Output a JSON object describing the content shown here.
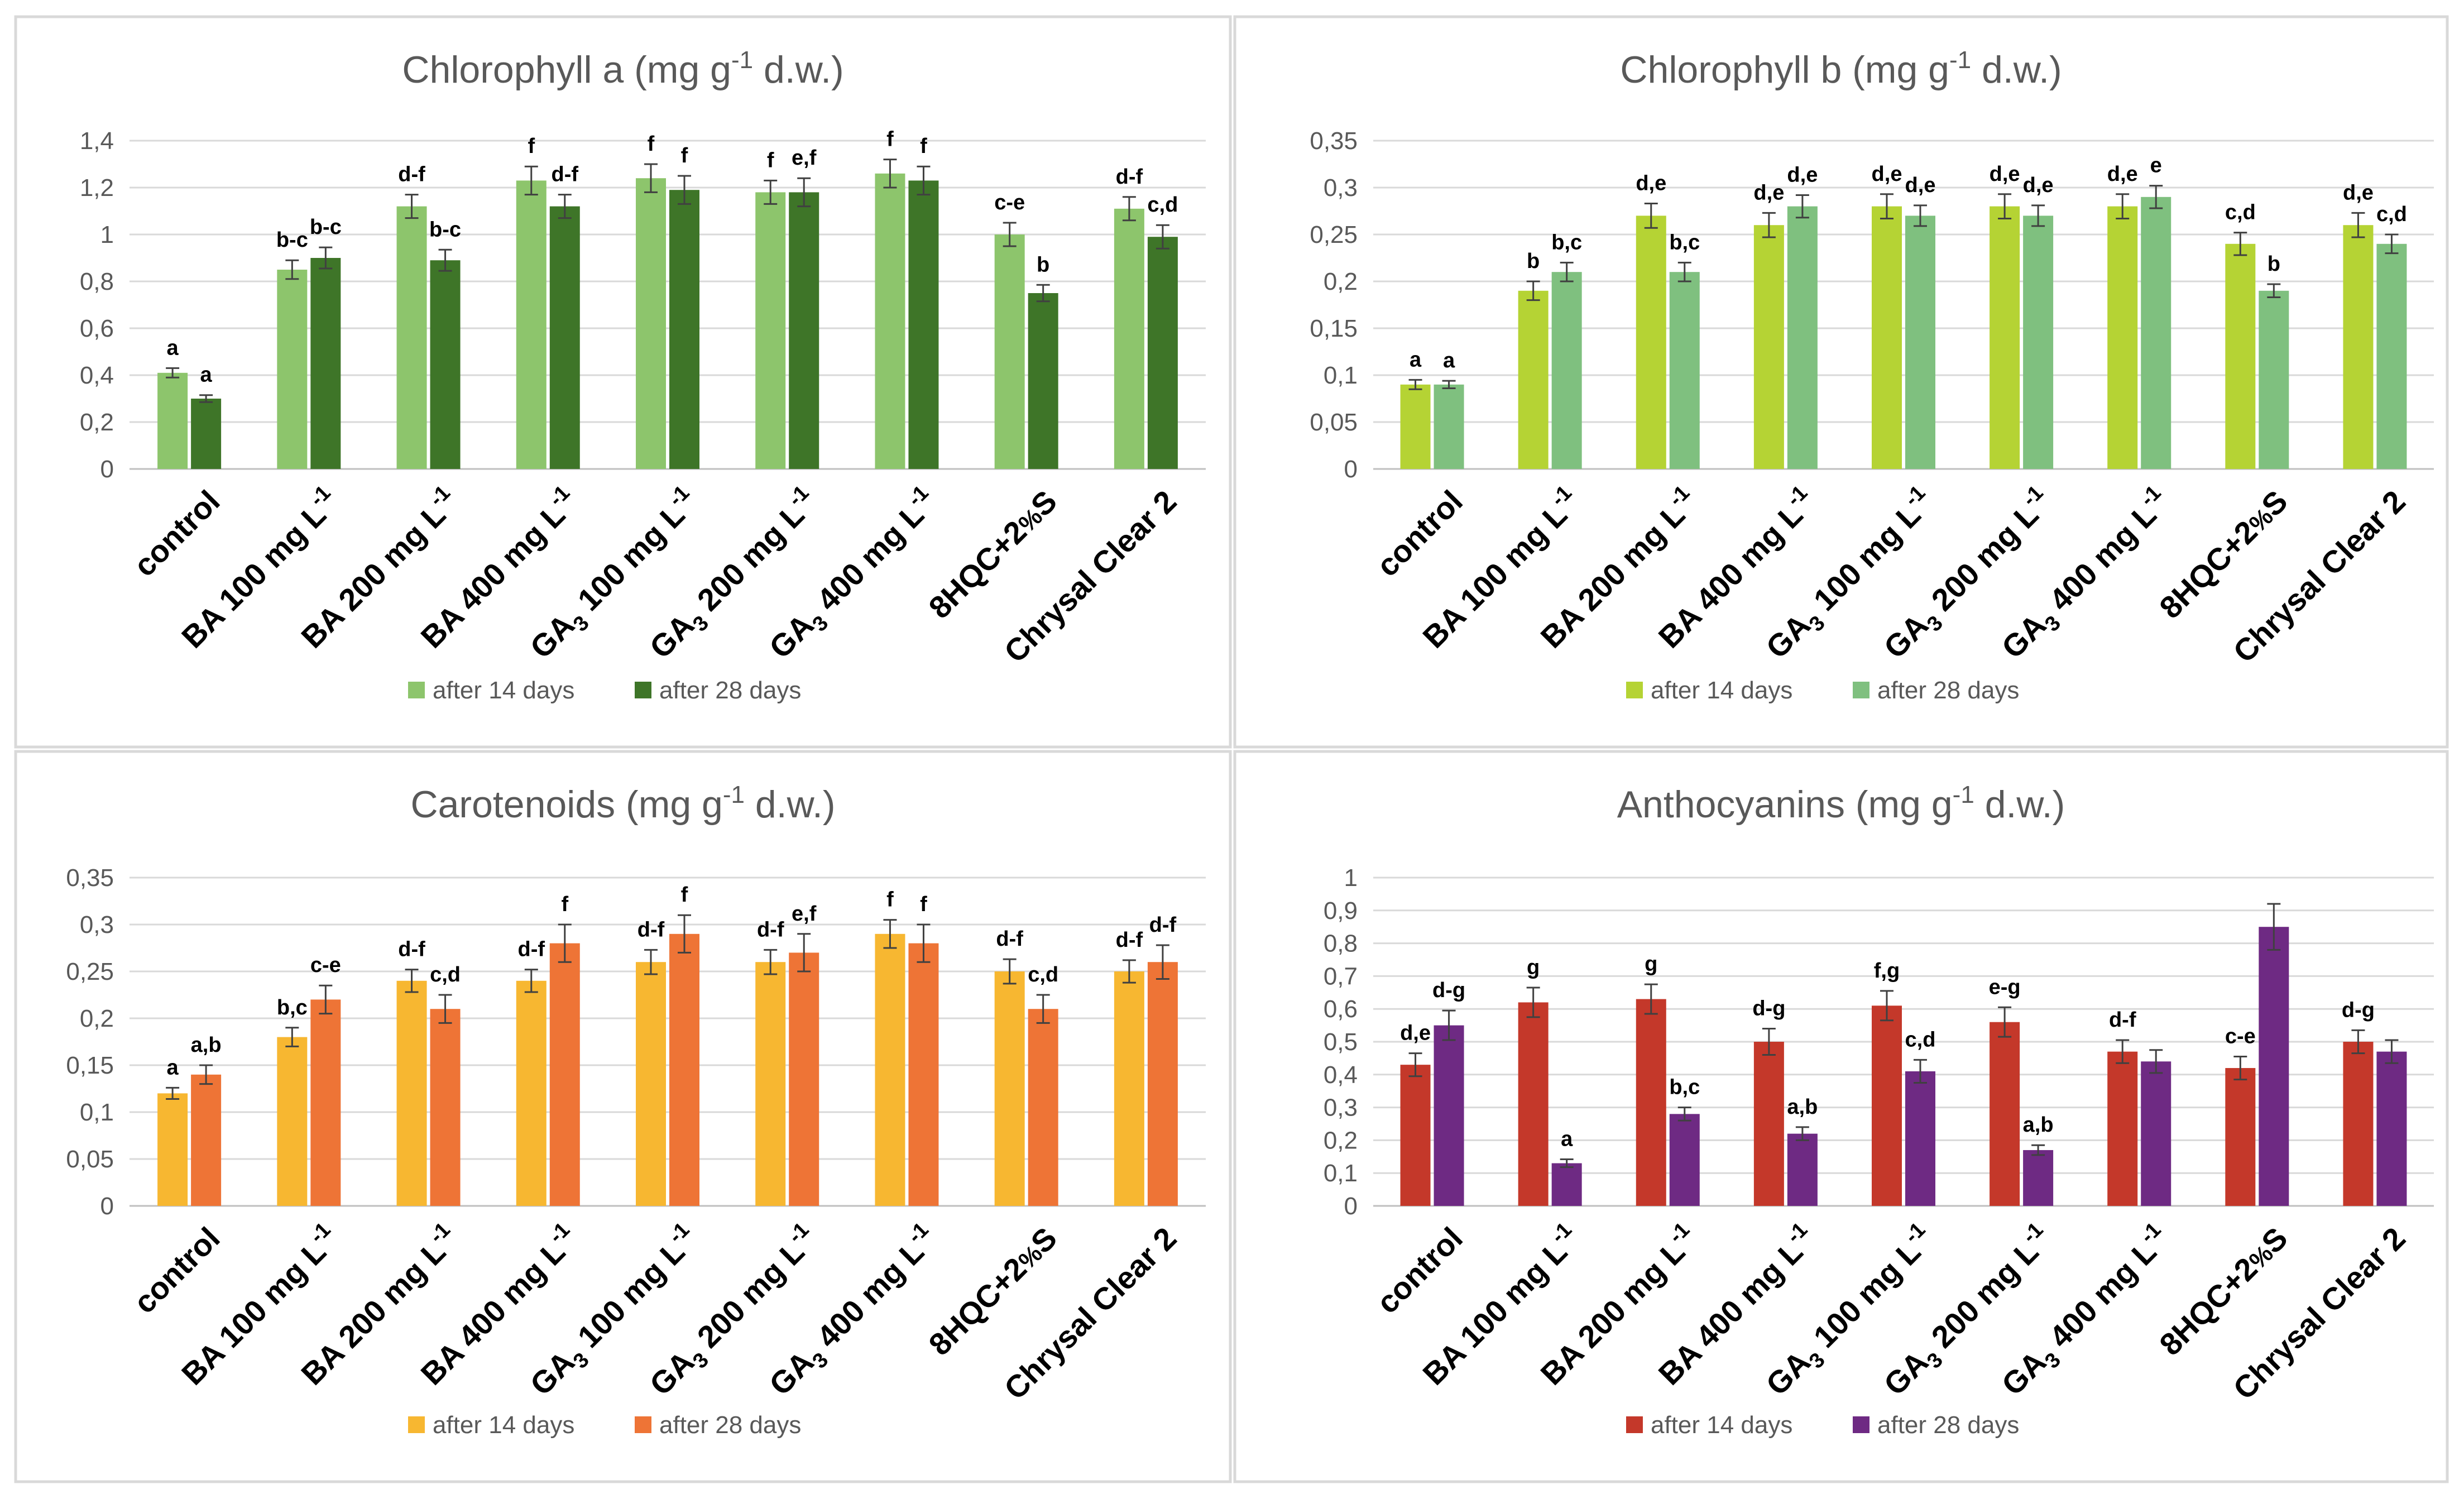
{
  "chart_data": [
    {
      "type": "bar",
      "title": "Chlorophyll a (mg g-1 d.w.)",
      "title_parts": {
        "main": "Chlorophyll a (mg g",
        "sup": "-1",
        "rest": " d.w.)"
      },
      "categories": [
        "control",
        "BA 100 mg L-1",
        "BA 200 mg L-1",
        "BA 400 mg L-1",
        "GA3 100 mg L-1",
        "GA3 200 mg L-1",
        "GA3 400 mg L-1",
        "8HQC+2%S",
        "Chrysal Clear 2"
      ],
      "ylim": [
        0,
        1.4
      ],
      "yticks": [
        "0",
        "0,2",
        "0,4",
        "0,6",
        "0,8",
        "1",
        "1,2",
        "1,4"
      ],
      "series": [
        {
          "name": "after 14 days",
          "color": "#8DC56C",
          "values": [
            0.41,
            0.85,
            1.12,
            1.23,
            1.24,
            1.18,
            1.26,
            1.0,
            1.11
          ],
          "errors": [
            0.02,
            0.04,
            0.05,
            0.06,
            0.06,
            0.05,
            0.06,
            0.05,
            0.05
          ],
          "labels": [
            "a",
            "b-c",
            "d-f",
            "f",
            "f",
            "f",
            "f",
            "c-e",
            "d-f"
          ]
        },
        {
          "name": "after 28 days",
          "color": "#3E7528",
          "values": [
            0.3,
            0.9,
            0.89,
            1.12,
            1.19,
            1.18,
            1.23,
            0.75,
            0.99
          ],
          "errors": [
            0.015,
            0.045,
            0.045,
            0.05,
            0.06,
            0.06,
            0.06,
            0.035,
            0.05
          ],
          "labels": [
            "a",
            "b-c",
            "b-c",
            "d-f",
            "f",
            "e,f",
            "f",
            "b",
            "c,d"
          ]
        }
      ]
    },
    {
      "type": "bar",
      "title": "Chlorophyll b (mg g-1 d.w.)",
      "title_parts": {
        "main": "Chlorophyll b (mg g",
        "sup": "-1",
        "rest": " d.w.)"
      },
      "categories": [
        "control",
        "BA 100 mg L-1",
        "BA 200 mg L-1",
        "BA 400 mg L-1",
        "GA3 100 mg L-1",
        "GA3 200 mg L-1",
        "GA3 400 mg L-1",
        "8HQC+2%S",
        "Chrysal Clear 2"
      ],
      "ylim": [
        0,
        0.35
      ],
      "yticks": [
        "0",
        "0,05",
        "0,1",
        "0,15",
        "0,2",
        "0,25",
        "0,3",
        "0,35"
      ],
      "series": [
        {
          "name": "after 14 days",
          "color": "#B5D334",
          "values": [
            0.09,
            0.19,
            0.27,
            0.26,
            0.28,
            0.28,
            0.28,
            0.24,
            0.26
          ],
          "errors": [
            0.005,
            0.01,
            0.013,
            0.013,
            0.013,
            0.013,
            0.013,
            0.012,
            0.013
          ],
          "labels": [
            "a",
            "b",
            "d,e",
            "d,e",
            "d,e",
            "d,e",
            "d,e",
            "c,d",
            "d,e"
          ]
        },
        {
          "name": "after 28 days",
          "color": "#7FC07F",
          "values": [
            0.09,
            0.21,
            0.21,
            0.28,
            0.27,
            0.27,
            0.29,
            0.19,
            0.24
          ],
          "errors": [
            0.004,
            0.01,
            0.01,
            0.012,
            0.011,
            0.011,
            0.012,
            0.007,
            0.01
          ],
          "labels": [
            "a",
            "b,c",
            "b,c",
            "d,e",
            "d,e",
            "d,e",
            "e",
            "b",
            "c,d"
          ]
        }
      ]
    },
    {
      "type": "bar",
      "title": "Carotenoids  (mg g-1 d.w.)",
      "title_parts": {
        "main": "Carotenoids  (mg g",
        "sup": "-1",
        "rest": " d.w.)"
      },
      "categories": [
        "control",
        "BA 100 mg L-1",
        "BA 200 mg L-1",
        "BA 400 mg L-1",
        "GA3 100 mg L-1",
        "GA3 200 mg L-1",
        "GA3 400 mg L-1",
        "8HQC+2%S",
        "Chrysal Clear 2"
      ],
      "ylim": [
        0,
        0.35
      ],
      "yticks": [
        "0",
        "0,05",
        "0,1",
        "0,15",
        "0,2",
        "0,25",
        "0,3",
        "0,35"
      ],
      "series": [
        {
          "name": "after 14 days",
          "color": "#F7B731",
          "values": [
            0.12,
            0.18,
            0.24,
            0.24,
            0.26,
            0.26,
            0.29,
            0.25,
            0.25
          ],
          "errors": [
            0.006,
            0.01,
            0.012,
            0.012,
            0.013,
            0.013,
            0.015,
            0.013,
            0.012
          ],
          "labels": [
            "a",
            "b,c",
            "d-f",
            "d-f",
            "d-f",
            "d-f",
            "f",
            "d-f",
            "d-f"
          ]
        },
        {
          "name": "after 28 days",
          "color": "#EE7436",
          "values": [
            0.14,
            0.22,
            0.21,
            0.28,
            0.29,
            0.27,
            0.28,
            0.21,
            0.26
          ],
          "errors": [
            0.01,
            0.015,
            0.015,
            0.02,
            0.02,
            0.02,
            0.02,
            0.015,
            0.018
          ],
          "labels": [
            "a,b",
            "c-e",
            "c,d",
            "f",
            "f",
            "e,f",
            "f",
            "c,d",
            "d-f"
          ]
        }
      ]
    },
    {
      "type": "bar",
      "title": "Anthocyanins (mg g-1 d.w.)",
      "title_parts": {
        "main": "Anthocyanins (mg g",
        "sup": "-1",
        "rest": " d.w.)"
      },
      "categories": [
        "control",
        "BA 100 mg L-1",
        "BA 200 mg L-1",
        "BA 400 mg L-1",
        "GA3 100 mg L-1",
        "GA3 200 mg L-1",
        "GA3 400 mg L-1",
        "8HQC+2%S",
        "Chrysal Clear 2"
      ],
      "ylim": [
        0,
        1.0
      ],
      "yticks": [
        "0",
        "0,1",
        "0,2",
        "0,3",
        "0,4",
        "0,5",
        "0,6",
        "0,7",
        "0,8",
        "0,9",
        "1"
      ],
      "series": [
        {
          "name": "after 14 days",
          "color": "#C4382A",
          "values": [
            0.43,
            0.62,
            0.63,
            0.5,
            0.61,
            0.56,
            0.47,
            0.42,
            0.5
          ],
          "errors": [
            0.035,
            0.045,
            0.045,
            0.04,
            0.045,
            0.045,
            0.035,
            0.035,
            0.035
          ],
          "labels": [
            "d,e",
            "g",
            "g",
            "d-g",
            "f,g",
            "e-g",
            "d-f",
            "c-e",
            "d-g"
          ]
        },
        {
          "name": "after 28 days",
          "color": "#6E2A83",
          "values": [
            0.55,
            0.13,
            0.28,
            0.22,
            0.41,
            0.17,
            0.44,
            0.85,
            0.47
          ],
          "errors": [
            0.045,
            0.012,
            0.02,
            0.02,
            0.035,
            0.015,
            0.035,
            0.07,
            0.035
          ],
          "labels": [
            "d-g",
            "a",
            "b,c",
            "a,b",
            "c,d",
            "a,b",
            "",
            "",
            ""
          ]
        }
      ]
    }
  ]
}
